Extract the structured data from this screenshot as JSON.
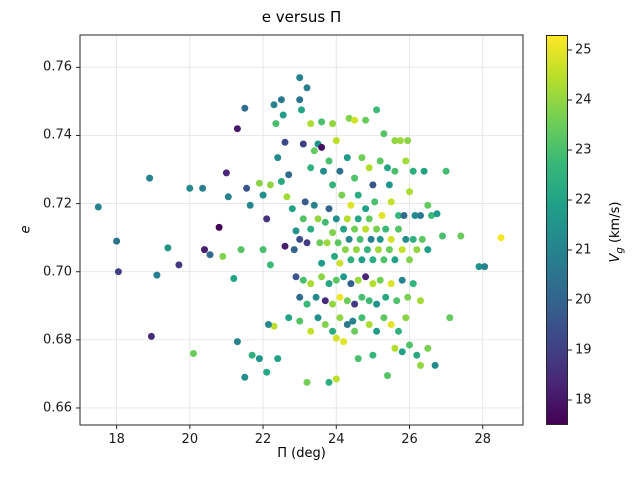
{
  "figure": {
    "title": "e versus Π",
    "xlabel": "Π (deg)",
    "ylabel": "e",
    "colorbar_label_prefix": "V",
    "colorbar_label_sub": "g",
    "colorbar_label_suffix": " (km/s)",
    "background": "#ffffff",
    "spine_color": "#262626",
    "grid_color": "#e5e5e5"
  },
  "chart_data": {
    "type": "scatter",
    "title": "e versus Π",
    "xlabel": "Π (deg)",
    "ylabel": "e",
    "colorbar_label": "Vg (km/s)",
    "xlim": [
      17.0,
      29.1
    ],
    "ylim": [
      0.655,
      0.7695
    ],
    "xticks": [
      18,
      20,
      22,
      24,
      26,
      28
    ],
    "yticks": [
      0.66,
      0.68,
      0.7,
      0.72,
      0.74,
      0.76
    ],
    "grid": true,
    "legend": "colorbar-right",
    "colormap": "viridis",
    "color_range": [
      17.5,
      25.3
    ],
    "colorbar_ticks": [
      18,
      19,
      20,
      21,
      22,
      23,
      24,
      25
    ],
    "marker_radius_px": 3.5,
    "viridis_stops": [
      "#440154",
      "#482878",
      "#3e4989",
      "#31688e",
      "#26828e",
      "#1f9e89",
      "#35b779",
      "#6ece58",
      "#b5de2b",
      "#fde725"
    ],
    "points": [
      [
        17.5,
        0.719,
        21.0
      ],
      [
        18.0,
        0.709,
        20.5
      ],
      [
        18.05,
        0.7,
        19.0
      ],
      [
        18.9,
        0.7275,
        21.0
      ],
      [
        18.95,
        0.681,
        18.5
      ],
      [
        19.1,
        0.699,
        20.8
      ],
      [
        19.4,
        0.707,
        21.5
      ],
      [
        19.7,
        0.702,
        18.8
      ],
      [
        20.0,
        0.7245,
        21.2
      ],
      [
        20.35,
        0.7245,
        20.9
      ],
      [
        20.1,
        0.676,
        23.5
      ],
      [
        20.4,
        0.7065,
        18.2
      ],
      [
        20.55,
        0.705,
        20.2
      ],
      [
        20.8,
        0.713,
        17.5
      ],
      [
        20.9,
        0.7045,
        23.8
      ],
      [
        21.0,
        0.729,
        18.4
      ],
      [
        21.05,
        0.722,
        21.0
      ],
      [
        21.3,
        0.742,
        18.0
      ],
      [
        21.5,
        0.748,
        20.3
      ],
      [
        21.55,
        0.7245,
        19.5
      ],
      [
        21.65,
        0.7195,
        21.1
      ],
      [
        21.4,
        0.7065,
        23.2
      ],
      [
        21.2,
        0.698,
        22.0
      ],
      [
        21.3,
        0.6795,
        21.0
      ],
      [
        21.5,
        0.669,
        21.3
      ],
      [
        21.7,
        0.6755,
        22.5
      ],
      [
        21.9,
        0.726,
        23.9
      ],
      [
        22.0,
        0.7225,
        21.4
      ],
      [
        22.1,
        0.7155,
        18.6
      ],
      [
        22.3,
        0.749,
        21.0
      ],
      [
        22.35,
        0.7435,
        23.0
      ],
      [
        22.5,
        0.7505,
        20.6
      ],
      [
        22.55,
        0.746,
        21.8
      ],
      [
        22.6,
        0.738,
        19.2
      ],
      [
        22.4,
        0.7335,
        21.2
      ],
      [
        22.2,
        0.7255,
        24.0
      ],
      [
        22.5,
        0.7265,
        22.2
      ],
      [
        22.65,
        0.722,
        24.2
      ],
      [
        22.7,
        0.7285,
        20.2
      ],
      [
        22.0,
        0.7065,
        23.0
      ],
      [
        22.2,
        0.702,
        22.8
      ],
      [
        22.3,
        0.684,
        24.5
      ],
      [
        22.15,
        0.6845,
        21.1
      ],
      [
        22.4,
        0.6745,
        22.0
      ],
      [
        23.0,
        0.757,
        21.0
      ],
      [
        23.2,
        0.754,
        20.8
      ],
      [
        23.0,
        0.7505,
        20.5
      ],
      [
        23.05,
        0.7475,
        22.0
      ],
      [
        23.3,
        0.7435,
        24.3
      ],
      [
        23.5,
        0.7375,
        21.5
      ],
      [
        23.6,
        0.744,
        23.0
      ],
      [
        23.9,
        0.7435,
        24.0
      ],
      [
        24.0,
        0.7385,
        24.5
      ],
      [
        24.35,
        0.745,
        23.8
      ],
      [
        24.5,
        0.7445,
        24.8
      ],
      [
        24.8,
        0.7445,
        23.5
      ],
      [
        25.1,
        0.7475,
        22.8
      ],
      [
        25.3,
        0.7405,
        23.2
      ],
      [
        25.6,
        0.7385,
        24.0
      ],
      [
        25.95,
        0.7385,
        23.9
      ],
      [
        23.1,
        0.7375,
        19.0
      ],
      [
        23.3,
        0.7305,
        22.5
      ],
      [
        23.4,
        0.7355,
        23.4
      ],
      [
        23.6,
        0.7365,
        17.8
      ],
      [
        23.65,
        0.7295,
        21.3
      ],
      [
        23.8,
        0.7325,
        23.0
      ],
      [
        24.1,
        0.7295,
        20.4
      ],
      [
        24.3,
        0.7335,
        21.8
      ],
      [
        24.5,
        0.7275,
        23.1
      ],
      [
        24.7,
        0.7335,
        23.6
      ],
      [
        24.9,
        0.7305,
        24.4
      ],
      [
        25.0,
        0.7255,
        19.6
      ],
      [
        25.2,
        0.7325,
        23.3
      ],
      [
        25.4,
        0.7305,
        22.1
      ],
      [
        25.45,
        0.7255,
        21.6
      ],
      [
        25.6,
        0.7295,
        23.0
      ],
      [
        25.9,
        0.7325,
        24.2
      ],
      [
        26.1,
        0.7295,
        22.4
      ],
      [
        26.4,
        0.7295,
        22.0
      ],
      [
        27.0,
        0.7295,
        22.9
      ],
      [
        23.9,
        0.7255,
        22.6
      ],
      [
        24.15,
        0.7225,
        23.7
      ],
      [
        24.4,
        0.7195,
        24.9
      ],
      [
        24.6,
        0.7225,
        22.3
      ],
      [
        24.8,
        0.7185,
        21.9
      ],
      [
        25.05,
        0.7205,
        23.0
      ],
      [
        25.25,
        0.7165,
        25.0
      ],
      [
        25.5,
        0.7205,
        24.6
      ],
      [
        25.7,
        0.7165,
        22.7
      ],
      [
        25.85,
        0.7165,
        20.1
      ],
      [
        26.0,
        0.7235,
        24.3
      ],
      [
        26.15,
        0.7165,
        21.2
      ],
      [
        26.3,
        0.7165,
        20.7
      ],
      [
        26.5,
        0.7195,
        23.4
      ],
      [
        26.6,
        0.7165,
        22.8
      ],
      [
        22.8,
        0.7185,
        22.0
      ],
      [
        22.9,
        0.712,
        21.5
      ],
      [
        23.0,
        0.7095,
        19.3
      ],
      [
        23.1,
        0.7155,
        23.2
      ],
      [
        23.2,
        0.7085,
        18.9
      ],
      [
        23.3,
        0.7125,
        22.4
      ],
      [
        23.4,
        0.7195,
        21.0
      ],
      [
        23.5,
        0.7155,
        24.0
      ],
      [
        23.55,
        0.7085,
        23.5
      ],
      [
        23.6,
        0.7025,
        21.7
      ],
      [
        23.7,
        0.7145,
        22.9
      ],
      [
        23.75,
        0.7085,
        24.1
      ],
      [
        23.8,
        0.7185,
        20.0
      ],
      [
        23.9,
        0.7115,
        23.8
      ],
      [
        23.95,
        0.7045,
        22.2
      ],
      [
        24.0,
        0.7155,
        21.4
      ],
      [
        24.05,
        0.7085,
        23.3
      ],
      [
        24.1,
        0.7025,
        24.7
      ],
      [
        24.2,
        0.7125,
        22.0
      ],
      [
        24.25,
        0.7065,
        23.9
      ],
      [
        24.3,
        0.7155,
        24.4
      ],
      [
        24.35,
        0.7095,
        21.1
      ],
      [
        24.4,
        0.7035,
        22.5
      ],
      [
        24.5,
        0.7125,
        23.6
      ],
      [
        24.55,
        0.7065,
        24.0
      ],
      [
        24.6,
        0.7155,
        22.1
      ],
      [
        24.65,
        0.7095,
        23.0
      ],
      [
        24.7,
        0.7035,
        21.8
      ],
      [
        24.8,
        0.7125,
        24.5
      ],
      [
        24.85,
        0.7065,
        22.6
      ],
      [
        24.9,
        0.7155,
        23.4
      ],
      [
        24.95,
        0.7095,
        20.9
      ],
      [
        25.0,
        0.7035,
        22.3
      ],
      [
        25.1,
        0.7125,
        23.7
      ],
      [
        25.15,
        0.7065,
        24.2
      ],
      [
        25.2,
        0.7095,
        21.6
      ],
      [
        25.3,
        0.7035,
        23.1
      ],
      [
        25.35,
        0.7125,
        22.8
      ],
      [
        25.45,
        0.7065,
        23.5
      ],
      [
        25.5,
        0.7095,
        24.8
      ],
      [
        25.6,
        0.7035,
        22.0
      ],
      [
        25.7,
        0.7125,
        23.2
      ],
      [
        25.8,
        0.7065,
        24.6
      ],
      [
        25.9,
        0.7095,
        21.3
      ],
      [
        26.0,
        0.7035,
        23.8
      ],
      [
        26.1,
        0.7095,
        22.5
      ],
      [
        26.2,
        0.7065,
        24.0
      ],
      [
        26.35,
        0.7095,
        23.3
      ],
      [
        26.5,
        0.7065,
        21.9
      ],
      [
        26.9,
        0.7105,
        23.0
      ],
      [
        27.4,
        0.7105,
        23.5
      ],
      [
        27.9,
        0.7015,
        21.5
      ],
      [
        28.05,
        0.7015,
        21.0
      ],
      [
        28.5,
        0.71,
        25.2
      ],
      [
        22.9,
        0.6985,
        19.5
      ],
      [
        23.0,
        0.6925,
        20.2
      ],
      [
        23.1,
        0.6975,
        23.0
      ],
      [
        23.2,
        0.6905,
        22.7
      ],
      [
        23.3,
        0.6965,
        24.3
      ],
      [
        23.45,
        0.6925,
        21.2
      ],
      [
        23.6,
        0.6985,
        23.9
      ],
      [
        23.7,
        0.6915,
        18.5
      ],
      [
        23.8,
        0.6965,
        22.1
      ],
      [
        23.9,
        0.6905,
        24.0
      ],
      [
        24.0,
        0.6975,
        23.3
      ],
      [
        24.1,
        0.6925,
        25.1
      ],
      [
        24.2,
        0.6985,
        21.7
      ],
      [
        24.3,
        0.6915,
        23.5
      ],
      [
        24.4,
        0.6965,
        19.9
      ],
      [
        24.5,
        0.6905,
        18.8
      ],
      [
        24.6,
        0.6975,
        24.1
      ],
      [
        24.7,
        0.6925,
        23.0
      ],
      [
        24.8,
        0.6985,
        18.3
      ],
      [
        24.9,
        0.6915,
        22.8
      ],
      [
        25.0,
        0.6965,
        24.4
      ],
      [
        25.1,
        0.6905,
        21.5
      ],
      [
        25.2,
        0.6975,
        23.6
      ],
      [
        25.35,
        0.6925,
        22.2
      ],
      [
        25.5,
        0.6965,
        24.9
      ],
      [
        25.65,
        0.6915,
        23.1
      ],
      [
        25.8,
        0.6975,
        21.0
      ],
      [
        25.95,
        0.6925,
        23.7
      ],
      [
        26.1,
        0.6965,
        22.6
      ],
      [
        26.3,
        0.6915,
        24.2
      ],
      [
        27.1,
        0.6865,
        23.4
      ],
      [
        22.7,
        0.6865,
        22.0
      ],
      [
        23.0,
        0.6855,
        23.2
      ],
      [
        23.3,
        0.6825,
        24.6
      ],
      [
        23.5,
        0.6865,
        21.4
      ],
      [
        23.7,
        0.6845,
        23.8
      ],
      [
        23.9,
        0.6825,
        22.3
      ],
      [
        24.1,
        0.6865,
        24.0
      ],
      [
        24.3,
        0.6845,
        20.6
      ],
      [
        24.5,
        0.6825,
        23.5
      ],
      [
        24.7,
        0.6865,
        22.9
      ],
      [
        24.9,
        0.6845,
        24.3
      ],
      [
        25.1,
        0.6825,
        21.8
      ],
      [
        25.3,
        0.6865,
        23.3
      ],
      [
        25.5,
        0.6845,
        25.0
      ],
      [
        25.7,
        0.6825,
        22.5
      ],
      [
        25.9,
        0.6865,
        23.9
      ],
      [
        24.0,
        0.6805,
        24.8
      ],
      [
        24.2,
        0.6795,
        25.0
      ],
      [
        21.9,
        0.6745,
        21.6
      ],
      [
        22.1,
        0.6705,
        22.1
      ],
      [
        23.2,
        0.6675,
        23.6
      ],
      [
        23.8,
        0.6675,
        22.4
      ],
      [
        24.0,
        0.6685,
        24.5
      ],
      [
        24.6,
        0.6745,
        23.0
      ],
      [
        25.0,
        0.6755,
        22.7
      ],
      [
        25.4,
        0.6695,
        23.2
      ],
      [
        25.6,
        0.6775,
        24.4
      ],
      [
        25.8,
        0.6765,
        21.9
      ],
      [
        26.0,
        0.6785,
        23.1
      ],
      [
        26.2,
        0.6755,
        22.2
      ],
      [
        26.3,
        0.6725,
        24.0
      ],
      [
        26.5,
        0.6775,
        23.7
      ],
      [
        26.7,
        0.6725,
        21.2
      ],
      [
        25.75,
        0.7385,
        24.1
      ],
      [
        22.6,
        0.7075,
        18.1
      ],
      [
        23.15,
        0.7205,
        19.8
      ],
      [
        22.85,
        0.7065,
        20.0
      ],
      [
        24.45,
        0.6855,
        21.0
      ],
      [
        26.75,
        0.717,
        21.7
      ]
    ]
  }
}
